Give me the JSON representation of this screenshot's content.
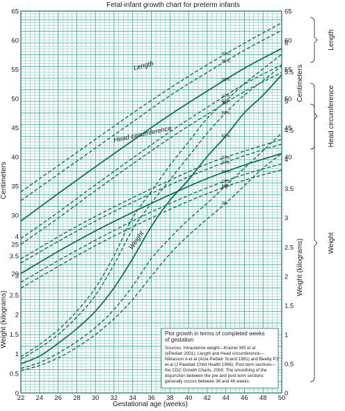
{
  "chart_data": {
    "type": "line",
    "title": "Fetal-infant growth chart for preterm infants",
    "xlabel": "Gestational age (weeks)",
    "x_ticks": [
      22,
      24,
      26,
      28,
      30,
      32,
      34,
      36,
      38,
      40,
      42,
      44,
      46,
      48,
      50
    ],
    "xlim": [
      22,
      50
    ],
    "y_left_ticks_cm": [
      20,
      25,
      30,
      35,
      40,
      45,
      50,
      55,
      60,
      65
    ],
    "y_left_ticks_kg": [
      "0",
      "0.5",
      "1",
      "1.5",
      "2",
      "2.5",
      "3",
      "3.5",
      "4"
    ],
    "y_right_ticks_cm": [
      40,
      45,
      50,
      55,
      60,
      65
    ],
    "y_right_ticks_kg": [
      "0",
      "0.5",
      "1",
      "1.5",
      "2",
      "2.5",
      "3",
      "3.5",
      "4",
      "4.5",
      "5",
      "5.5",
      "6"
    ],
    "ylabel_left_cm": "Centimeters",
    "ylabel_left_kg": "Weight (kilograms)",
    "ylabel_right_cm": "Centimeters",
    "ylabel_right_kg": "Weight (kilograms)",
    "bracket_labels": {
      "length": "Length",
      "head": "Head circumference",
      "weight": "Weight"
    },
    "curve_labels": {
      "length": "Length",
      "head": "Head circumference",
      "weight": "Weight"
    },
    "percentile_labels": [
      "97%",
      "90%",
      "50%",
      "10%",
      "3%"
    ],
    "note": {
      "title_line1": "Plot growth in terms of completed weeks",
      "title_line2": "of gestation",
      "source_lines": [
        "Sources: Intrauterine weight—Kramer MS et al",
        "(ePediatr 2001); Length and Head circumference—",
        "Niklasson A et al (Acta Pediatr Scand 1991) and Beeby PJ",
        "et al (J Paediatr Child Health 1996); Post term sections—",
        "the CDC Growth Charts, 2000. The smoothing of the",
        "disjunction between the pre and post term sections",
        "generally occurs between 36 and 46 weeks."
      ]
    },
    "series": [
      {
        "name": "Length 97%",
        "group": "length",
        "pct": 97,
        "unit": "cm",
        "x": [
          22,
          26,
          30,
          34,
          38,
          42,
          46,
          50
        ],
        "y": [
          34,
          38.5,
          43,
          47.5,
          51.8,
          55.8,
          59.5,
          63
        ]
      },
      {
        "name": "Length 90%",
        "group": "length",
        "pct": 90,
        "unit": "cm",
        "x": [
          22,
          26,
          30,
          34,
          38,
          42,
          46,
          50
        ],
        "y": [
          32.5,
          37,
          41.5,
          46,
          50.5,
          54.5,
          58.3,
          61.7
        ]
      },
      {
        "name": "Length 50%",
        "group": "length",
        "pct": 50,
        "unit": "cm",
        "x": [
          22,
          26,
          30,
          34,
          38,
          42,
          46,
          50
        ],
        "y": [
          29,
          33.7,
          38.3,
          42.8,
          47.2,
          51.3,
          55.2,
          58.6
        ]
      },
      {
        "name": "Length 10%",
        "group": "length",
        "pct": 10,
        "unit": "cm",
        "x": [
          22,
          26,
          30,
          34,
          38,
          42,
          46,
          50
        ],
        "y": [
          26,
          30.5,
          35.2,
          39.8,
          44.3,
          48.5,
          52.5,
          55.8
        ]
      },
      {
        "name": "Length 3%",
        "group": "length",
        "pct": 3,
        "unit": "cm",
        "x": [
          22,
          26,
          30,
          34,
          38,
          42,
          46,
          50
        ],
        "y": [
          25,
          29.5,
          34.2,
          38.8,
          43.2,
          47.3,
          51.2,
          54.5
        ]
      },
      {
        "name": "Head circumference 97%",
        "group": "head",
        "pct": 97,
        "unit": "cm",
        "x": [
          22,
          26,
          30,
          34,
          38,
          42,
          46,
          50
        ],
        "y": [
          22.5,
          26.3,
          29.8,
          33,
          36,
          38.8,
          41,
          43
        ]
      },
      {
        "name": "Head circumference 90%",
        "group": "head",
        "pct": 90,
        "unit": "cm",
        "x": [
          22,
          26,
          30,
          34,
          38,
          42,
          46,
          50
        ],
        "y": [
          21.8,
          25.5,
          29,
          32.2,
          35.2,
          37.9,
          40.2,
          42.2
        ]
      },
      {
        "name": "Head circumference 50%",
        "group": "head",
        "pct": 50,
        "unit": "cm",
        "x": [
          22,
          26,
          30,
          34,
          38,
          42,
          46,
          50
        ],
        "y": [
          20,
          23.8,
          27.3,
          30.5,
          33.5,
          36.3,
          38.6,
          40.6
        ]
      },
      {
        "name": "Head circumference 10%",
        "group": "head",
        "pct": 10,
        "unit": "cm",
        "x": [
          22,
          26,
          30,
          34,
          38,
          42,
          46,
          50
        ],
        "y": [
          18.5,
          22.2,
          25.7,
          29,
          32,
          34.7,
          37,
          38.8
        ]
      },
      {
        "name": "Head circumference 3%",
        "group": "head",
        "pct": 3,
        "unit": "cm",
        "x": [
          22,
          26,
          30,
          34,
          38,
          42,
          46,
          50
        ],
        "y": [
          17.5,
          21.2,
          24.8,
          28,
          31,
          33.7,
          36,
          37.8
        ]
      },
      {
        "name": "Weight 97%",
        "group": "weight",
        "pct": 97,
        "unit": "kg",
        "x": [
          22,
          24,
          26,
          28,
          30,
          32,
          34,
          36,
          38,
          40,
          42,
          44,
          46,
          48,
          50
        ],
        "y": [
          0.62,
          0.83,
          1.08,
          1.4,
          1.8,
          2.35,
          3.0,
          3.45,
          3.9,
          4.3,
          4.7,
          5.0,
          5.3,
          5.55,
          5.8
        ]
      },
      {
        "name": "Weight 90%",
        "group": "weight",
        "pct": 90,
        "unit": "kg",
        "x": [
          22,
          24,
          26,
          28,
          30,
          32,
          34,
          36,
          38,
          40,
          42,
          44,
          46,
          48,
          50
        ],
        "y": [
          0.58,
          0.77,
          1.0,
          1.3,
          1.67,
          2.2,
          2.8,
          3.25,
          3.65,
          4.05,
          4.45,
          4.8,
          5.1,
          5.35,
          5.6
        ]
      },
      {
        "name": "Weight 50%",
        "group": "weight",
        "pct": 50,
        "unit": "kg",
        "x": [
          22,
          24,
          26,
          28,
          30,
          32,
          34,
          36,
          38,
          40,
          42,
          44,
          46,
          48,
          50
        ],
        "y": [
          0.5,
          0.63,
          0.85,
          1.1,
          1.4,
          1.8,
          2.3,
          2.85,
          3.3,
          3.65,
          4.05,
          4.4,
          4.8,
          5.1,
          5.45
        ]
      },
      {
        "name": "Weight 10%",
        "group": "weight",
        "pct": 10,
        "unit": "kg",
        "x": [
          22,
          24,
          26,
          28,
          30,
          32,
          34,
          36,
          38,
          40,
          42,
          44,
          46,
          48,
          50
        ],
        "y": [
          0.42,
          0.52,
          0.68,
          0.88,
          1.12,
          1.43,
          1.83,
          2.3,
          2.65,
          2.97,
          3.25,
          3.55,
          3.85,
          4.15,
          4.45
        ]
      },
      {
        "name": "Weight 3%",
        "group": "weight",
        "pct": 3,
        "unit": "kg",
        "x": [
          22,
          24,
          26,
          28,
          30,
          32,
          34,
          36,
          38,
          40,
          42,
          44,
          46,
          48,
          50
        ],
        "y": [
          0.38,
          0.47,
          0.6,
          0.78,
          1.0,
          1.27,
          1.6,
          2.0,
          2.38,
          2.7,
          2.98,
          3.25,
          3.55,
          3.85,
          4.1
        ]
      }
    ],
    "grid": true,
    "colors": {
      "grid": "#2aa58c",
      "curve": "#0d6e5a",
      "frame": "#0d6e5a"
    }
  }
}
